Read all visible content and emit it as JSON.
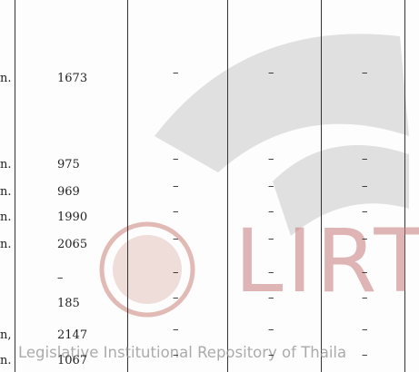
{
  "table": {
    "rows": [
      {
        "label": "n.",
        "value": "1673",
        "cols": [
          "–",
          "–",
          "–"
        ]
      },
      {
        "label": "n.",
        "value": "975",
        "cols": [
          "–",
          "–",
          "–"
        ]
      },
      {
        "label": "n.",
        "value": "969",
        "cols": [
          "–",
          "–",
          "–"
        ]
      },
      {
        "label": "n.",
        "value": "1990",
        "cols": [
          "–",
          "–",
          "–"
        ]
      },
      {
        "label": "n.",
        "value": "2065",
        "cols": [
          "–",
          "–",
          "–"
        ]
      },
      {
        "label": "",
        "value": "–",
        "cols": [
          "–",
          "–",
          "–"
        ]
      },
      {
        "label": "",
        "value": "185",
        "cols": [
          "–",
          "–",
          "–"
        ]
      },
      {
        "label": "n,",
        "value": "2147",
        "cols": [
          "–",
          "–",
          "–"
        ]
      },
      {
        "label": "n.",
        "value": "1067",
        "cols": [
          "–",
          "–",
          "–"
        ]
      }
    ]
  },
  "watermark": {
    "logo_text": "LIRT",
    "caption": "Legislative Institutional Repository of Thaila"
  }
}
